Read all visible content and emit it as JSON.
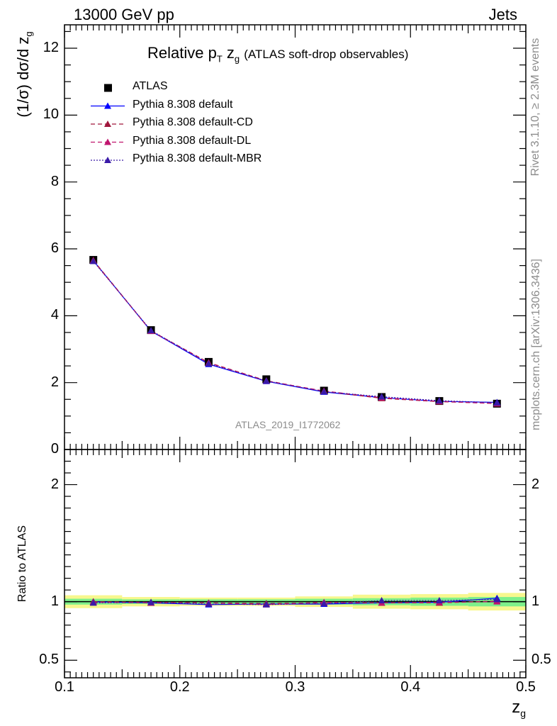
{
  "header": {
    "energy_label": "13000 GeV pp",
    "process_label": "Jets"
  },
  "side_labels": {
    "rivet": "Rivet 3.1.10, ≥ 2.3M events",
    "mcplots": "mcplots.cern.ch [arXiv:1306.3436]"
  },
  "watermark": "ATLAS_2019_I1772062",
  "chart_data": [
    {
      "type": "line",
      "title_main": "Relative p",
      "title_sub": "T",
      "title_var": "z",
      "title_var_sub": "g",
      "title_rest": "(ATLAS soft-drop observables)",
      "ylabel": "(1/σ) dσ/d z",
      "ylabel_sub": "g",
      "xlim": [
        0.1,
        0.5
      ],
      "ylim": [
        0,
        12.7
      ],
      "y_ticks": [
        0,
        2,
        4,
        6,
        8,
        10,
        12
      ],
      "legend_position": "top-left",
      "x": [
        0.125,
        0.175,
        0.225,
        0.275,
        0.325,
        0.375,
        0.425,
        0.475
      ],
      "series": [
        {
          "name": "ATLAS",
          "style": "data",
          "color": "#000000",
          "values": [
            5.67,
            3.57,
            2.62,
            2.1,
            1.76,
            1.57,
            1.45,
            1.37
          ]
        },
        {
          "name": "Pythia 8.308 default",
          "style": "solid",
          "color": "#0000ff",
          "values": [
            5.65,
            3.54,
            2.55,
            2.04,
            1.72,
            1.55,
            1.44,
            1.41
          ]
        },
        {
          "name": "Pythia 8.308 default-CD",
          "style": "dashed",
          "color": "#a0163c",
          "values": [
            5.66,
            3.55,
            2.6,
            2.06,
            1.74,
            1.53,
            1.43,
            1.38
          ]
        },
        {
          "name": "Pythia 8.308 default-DL",
          "style": "dashed",
          "color": "#c0146e",
          "values": [
            5.64,
            3.54,
            2.59,
            2.05,
            1.75,
            1.55,
            1.44,
            1.37
          ]
        },
        {
          "name": "Pythia 8.308 default-MBR",
          "style": "dotted",
          "color": "#3a1aa8",
          "values": [
            5.63,
            3.56,
            2.57,
            2.05,
            1.73,
            1.58,
            1.46,
            1.4
          ]
        }
      ]
    },
    {
      "type": "line",
      "ylabel": "Ratio to ATLAS",
      "xlabel": "z",
      "xlabel_sub": "g",
      "xlim": [
        0.1,
        0.5
      ],
      "ylim": [
        0.35,
        2.3
      ],
      "y_ticks": [
        0.5,
        1,
        2
      ],
      "y_ticklabels": [
        "0.5",
        "1",
        "2"
      ],
      "x_ticks": [
        0.1,
        0.2,
        0.3,
        0.4,
        0.5
      ],
      "x_ticklabels": [
        "0.1",
        "0.2",
        "0.3",
        "0.4",
        "0.5"
      ],
      "x": [
        0.125,
        0.175,
        0.225,
        0.275,
        0.325,
        0.375,
        0.425,
        0.475
      ],
      "bin_edges": [
        0.1,
        0.15,
        0.2,
        0.25,
        0.3,
        0.35,
        0.4,
        0.45,
        0.5
      ],
      "uncertainty_bands": {
        "stat_color": "#7ef08b",
        "total_color": "#f7f78e",
        "stat": [
          0.025,
          0.02,
          0.02,
          0.02,
          0.025,
          0.03,
          0.035,
          0.04
        ],
        "total": [
          0.055,
          0.04,
          0.035,
          0.035,
          0.045,
          0.06,
          0.065,
          0.075
        ]
      },
      "series": [
        {
          "name": "Pythia 8.308 default",
          "color": "#0000ff",
          "values": [
            1.0,
            0.99,
            0.975,
            0.98,
            0.98,
            0.99,
            0.995,
            1.03
          ]
        },
        {
          "name": "Pythia 8.308 default-CD",
          "color": "#a0163c",
          "values": [
            1.0,
            0.995,
            0.99,
            0.985,
            0.99,
            0.99,
            0.99,
            1.005
          ]
        },
        {
          "name": "Pythia 8.308 default-DL",
          "color": "#c0146e",
          "values": [
            0.995,
            0.99,
            0.99,
            0.975,
            0.995,
            0.99,
            0.995,
            1.0
          ]
        },
        {
          "name": "Pythia 8.308 default-MBR",
          "color": "#3a1aa8",
          "values": [
            0.99,
            0.995,
            0.98,
            0.975,
            0.985,
            1.01,
            1.01,
            1.02
          ]
        }
      ]
    }
  ]
}
